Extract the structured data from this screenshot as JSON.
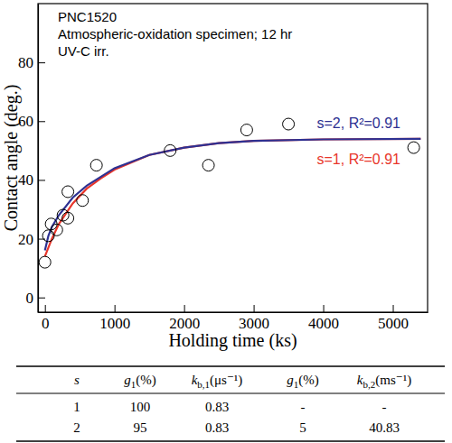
{
  "chart_data": {
    "type": "scatter",
    "annotations": [
      "PNC1520",
      "Atmospheric-oxidation specimen; 12 hr",
      "UV-C irr."
    ],
    "x_label": "Holding time (ks)",
    "y_label": "Contact angle (deg.)",
    "xlim": [
      -100,
      5500
    ],
    "ylim": [
      -5,
      100
    ],
    "xticks": [
      0,
      1000,
      2000,
      3000,
      4000,
      5000
    ],
    "yticks": [
      0,
      20,
      40,
      60,
      80
    ],
    "grid": false,
    "series": [
      {
        "type": "scatter",
        "color": "#000000",
        "marker": "circle-open",
        "x": [
          0,
          50,
          90,
          170,
          260,
          330,
          330,
          540,
          740,
          1800,
          2350,
          2900,
          3500,
          5300
        ],
        "values": [
          12,
          21,
          25,
          23,
          28,
          27,
          36,
          33,
          45,
          50,
          45,
          57,
          59,
          51
        ]
      },
      {
        "type": "line",
        "name": "s=1, R²=0.91",
        "color": "#e8362b",
        "line_style": "solid",
        "marker": "none",
        "x": [
          0,
          50,
          100,
          200,
          400,
          600,
          800,
          1000,
          1500,
          2000,
          2500,
          3000,
          4000,
          5400
        ],
        "values": [
          14,
          17,
          20,
          25,
          32,
          37,
          40.5,
          43.5,
          48.5,
          51,
          52.5,
          53.3,
          53.8,
          54
        ]
      },
      {
        "type": "line",
        "name": "s=2, R²=0.91",
        "color": "#2e3192",
        "line_style": "solid",
        "marker": "none",
        "x": [
          0,
          50,
          100,
          200,
          400,
          600,
          800,
          1000,
          1500,
          2000,
          2500,
          3000,
          4000,
          5400
        ],
        "values": [
          16,
          21,
          24,
          28,
          34,
          38,
          41,
          44,
          48.5,
          51,
          52.5,
          53.3,
          53.8,
          54
        ]
      }
    ]
  },
  "table": {
    "header": [
      {
        "base": "s"
      },
      {
        "base": "g",
        "sub": "1",
        "unit": "(%)"
      },
      {
        "base": "k",
        "sub": "b,1",
        "unit": "(μs⁻¹)"
      },
      {
        "base": "g",
        "sub": "1",
        "unit": "(%)"
      },
      {
        "base": "k",
        "sub": "b,2",
        "unit": "(ms⁻¹)"
      }
    ],
    "rows": [
      [
        "1",
        "100",
        "0.83",
        "-",
        "-"
      ],
      [
        "2",
        "95",
        "0.83",
        "5",
        "40.83"
      ]
    ]
  }
}
